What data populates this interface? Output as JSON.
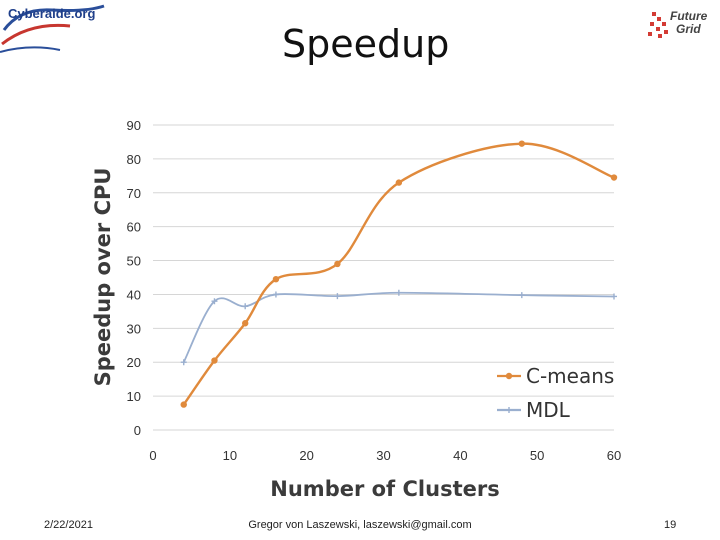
{
  "header": {
    "title": "Speedup",
    "logo_left_text": "Cyberaide.org",
    "logo_right_text_line1": "Future",
    "logo_right_text_line2": "Grid"
  },
  "footer": {
    "date": "2/22/2021",
    "author": "Gregor von Laszewski, laszewski@gmail.com",
    "page": "19"
  },
  "colors": {
    "cmeans": "#e08a3c",
    "mdl": "#9aafcf",
    "grid": "#d6d6d6"
  },
  "chart_data": {
    "type": "line",
    "title": "",
    "xlabel": "Number of Clusters",
    "ylabel": "Speedup over CPU",
    "xlim": [
      0,
      60
    ],
    "ylim": [
      0,
      90
    ],
    "xticks": [
      0,
      10,
      20,
      30,
      40,
      50,
      60
    ],
    "yticks": [
      0,
      10,
      20,
      30,
      40,
      50,
      60,
      70,
      80,
      90
    ],
    "grid": "horizontal",
    "legend_position": "bottom-right",
    "series": [
      {
        "name": "C-means",
        "color": "#e08a3c",
        "marker": "circle",
        "x": [
          4,
          8,
          12,
          16,
          24,
          32,
          48,
          60
        ],
        "y": [
          7.5,
          20.5,
          31.5,
          44.5,
          49,
          73,
          84.5,
          74.5
        ]
      },
      {
        "name": "MDL",
        "color": "#9aafcf",
        "marker": "plus",
        "x": [
          4,
          8,
          12,
          16,
          24,
          32,
          48,
          60
        ],
        "y": [
          20,
          38,
          36.5,
          40,
          39.5,
          40.5,
          39.8,
          39.4
        ]
      }
    ]
  }
}
